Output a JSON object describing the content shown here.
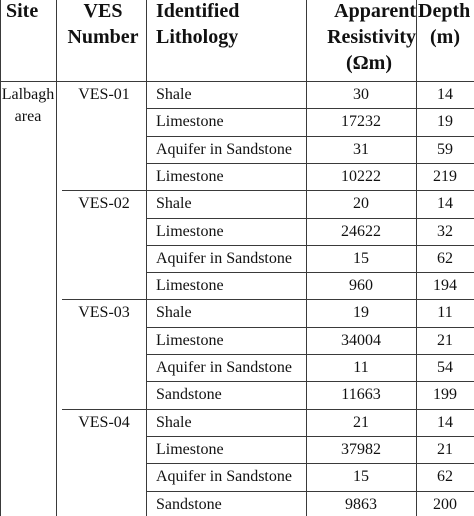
{
  "table": {
    "headers": {
      "site": "Site",
      "ves_line1": "VES",
      "ves_line2": "Number",
      "lith_line1": "Identified",
      "lith_line2": "Lithology",
      "res_line1": "Apparent",
      "res_line2": "Resistivity",
      "res_line3": "(Ωm)",
      "depth_line1": "Depth",
      "depth_line2": "(m)"
    },
    "site": {
      "line1": "Lalbagh",
      "line2": "area"
    },
    "groups": [
      {
        "ves": "VES-01",
        "rows": [
          {
            "lithology": "Shale",
            "resistivity": "30",
            "depth": "14"
          },
          {
            "lithology": "Limestone",
            "resistivity": "17232",
            "depth": "19"
          },
          {
            "lithology": "Aquifer in Sandstone",
            "resistivity": "31",
            "depth": "59"
          },
          {
            "lithology": "Limestone",
            "resistivity": "10222",
            "depth": "219"
          }
        ]
      },
      {
        "ves": "VES-02",
        "rows": [
          {
            "lithology": "Shale",
            "resistivity": "20",
            "depth": "14"
          },
          {
            "lithology": "Limestone",
            "resistivity": "24622",
            "depth": "32"
          },
          {
            "lithology": "Aquifer in Sandstone",
            "resistivity": "15",
            "depth": "62"
          },
          {
            "lithology": "Limestone",
            "resistivity": "960",
            "depth": "194"
          }
        ]
      },
      {
        "ves": "VES-03",
        "rows": [
          {
            "lithology": "Shale",
            "resistivity": "19",
            "depth": "11"
          },
          {
            "lithology": "Limestone",
            "resistivity": "34004",
            "depth": "21"
          },
          {
            "lithology": "Aquifer in Sandstone",
            "resistivity": "11",
            "depth": "54"
          },
          {
            "lithology": "Sandstone",
            "resistivity": "11663",
            "depth": "199"
          }
        ]
      },
      {
        "ves": "VES-04",
        "rows": [
          {
            "lithology": "Shale",
            "resistivity": "21",
            "depth": "14"
          },
          {
            "lithology": "Limestone",
            "resistivity": "37982",
            "depth": "21"
          },
          {
            "lithology": "Aquifer in Sandstone",
            "resistivity": "15",
            "depth": "62"
          },
          {
            "lithology": "Sandstone",
            "resistivity": "9863",
            "depth": "200"
          }
        ]
      }
    ]
  }
}
